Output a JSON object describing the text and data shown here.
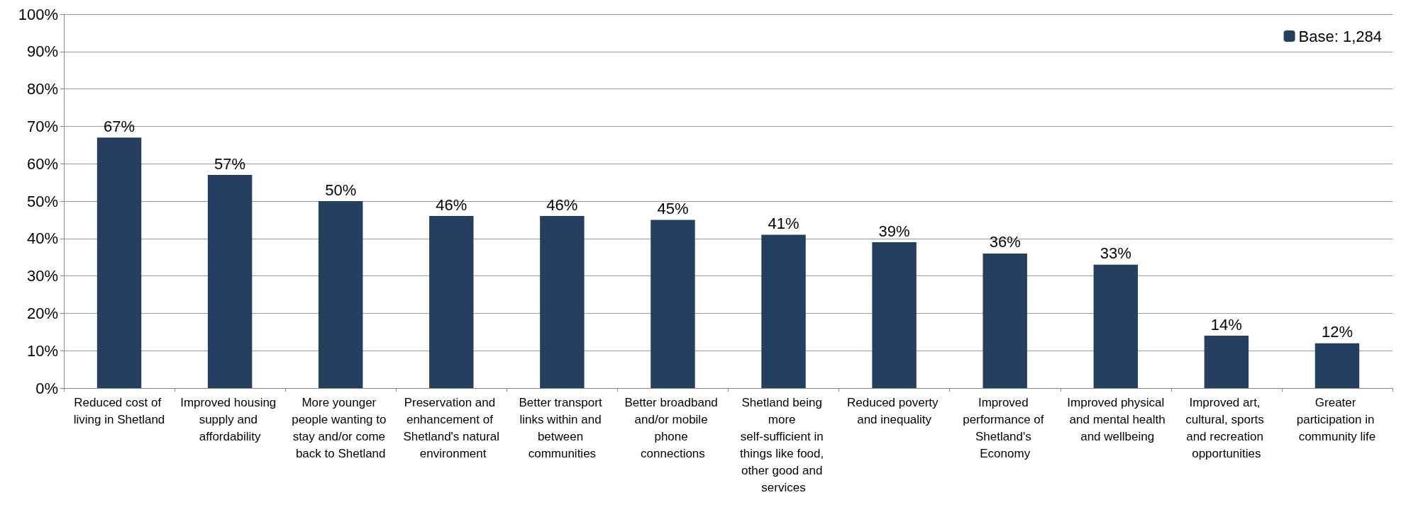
{
  "chart_data": {
    "type": "bar",
    "categories": [
      "Reduced cost of living in Shetland",
      "Improved housing supply and affordability",
      "More younger people wanting to stay and/or come back to Shetland",
      "Preservation and enhancement of Shetland's natural environment",
      "Better transport links within and between communities",
      "Better broadband and/or mobile phone connections",
      "Shetland being more self-sufficient in things like food, other good and services",
      "Reduced poverty and inequality",
      "Improved performance of Shetland's Economy",
      "Improved physical and mental health and wellbeing",
      "Improved art, cultural, sports and recreation opportunities",
      "Greater participation in community life"
    ],
    "series": [
      {
        "name": "Base: 1,284",
        "color": "#243f60",
        "values": [
          67,
          57,
          50,
          46,
          46,
          45,
          41,
          39,
          36,
          33,
          14,
          12
        ]
      }
    ],
    "value_labels": [
      "67%",
      "57%",
      "50%",
      "46%",
      "46%",
      "45%",
      "41%",
      "39%",
      "36%",
      "33%",
      "14%",
      "12%"
    ],
    "ylim": [
      0,
      100
    ],
    "yticks": [
      {
        "value": 0,
        "label": "0%"
      },
      {
        "value": 10,
        "label": "10%"
      },
      {
        "value": 20,
        "label": "20%"
      },
      {
        "value": 30,
        "label": "30%"
      },
      {
        "value": 40,
        "label": "40%"
      },
      {
        "value": 50,
        "label": "50%"
      },
      {
        "value": 60,
        "label": "60%"
      },
      {
        "value": 70,
        "label": "70%"
      },
      {
        "value": 80,
        "label": "80%"
      },
      {
        "value": 90,
        "label": "90%"
      },
      {
        "value": 100,
        "label": "100%"
      }
    ],
    "grid": "y",
    "legend": "top right"
  }
}
